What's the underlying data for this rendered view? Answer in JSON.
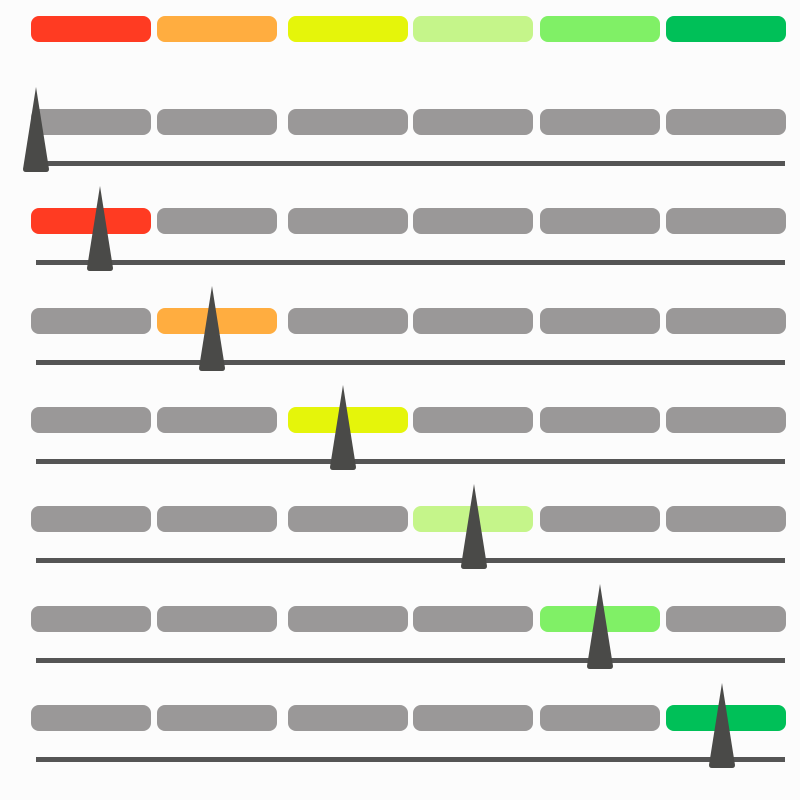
{
  "scale": {
    "segment_colors": [
      "#ff3b22",
      "#ffad40",
      "#e5f50a",
      "#c5f58a",
      "#80f066",
      "#00c058"
    ],
    "inactive_color": "#9a9898",
    "line_color": "#555555",
    "needle_color": "#4a4a48"
  },
  "meters": [
    {
      "active_segment": null,
      "needle_position": 0.0
    },
    {
      "active_segment": 0,
      "needle_position": 0.085
    },
    {
      "active_segment": 1,
      "needle_position": 0.235
    },
    {
      "active_segment": 2,
      "needle_position": 0.41
    },
    {
      "active_segment": 3,
      "needle_position": 0.585
    },
    {
      "active_segment": 4,
      "needle_position": 0.753
    },
    {
      "active_segment": 5,
      "needle_position": 0.916
    }
  ]
}
